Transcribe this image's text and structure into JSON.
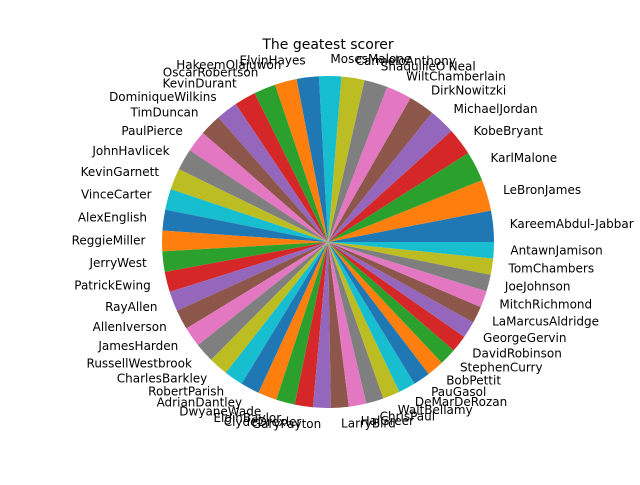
{
  "chart_data": {
    "type": "pie",
    "title": "The geatest scorer",
    "start_angle_deg": 0,
    "direction": "counterclockwise",
    "categories": [
      "KareemAbdul-Jabbar",
      "LeBronJames",
      "KarlMalone",
      "KobeBryant",
      "MichaelJordan",
      "DirkNowitzki",
      "WiltChamberlain",
      "ShaquilleO'Neal",
      "CarmeloAnthony",
      "MosesMalone",
      "ElvinHayes",
      "HakeemOlajuwon",
      "OscarRobertson",
      "KevinDurant",
      "DominiqueWilkins",
      "TimDuncan",
      "PaulPierce",
      "JohnHavlicek",
      "KevinGarnett",
      "VinceCarter",
      "AlexEnglish",
      "ReggieMiller",
      "JerryWest",
      "PatrickEwing",
      "RayAllen",
      "AllenIverson",
      "JamesHarden",
      "RussellWestbrook",
      "CharlesBarkley",
      "RobertParish",
      "AdrianDantley",
      "DwyaneWade",
      "ElginBaylor",
      "ClydeDrexler",
      "GaryPayton",
      "LarryBird",
      "HalGreer",
      "ChrisPaul",
      "WaltBellamy",
      "DeMarDeRozan",
      "PauGasol",
      "BobPettit",
      "StephenCurry",
      "DavidRobinson",
      "GeorgeGervin",
      "LaMarcusAldridge",
      "MitchRichmond",
      "JoeJohnson",
      "TomChambers",
      "AntawnJamison"
    ],
    "values": [
      38387,
      38390,
      36928,
      33643,
      32292,
      31560,
      31419,
      28596,
      28289,
      27409,
      27313,
      26946,
      26710,
      26511,
      26668,
      26496,
      26397,
      26395,
      26071,
      25728,
      25613,
      25279,
      25192,
      24815,
      24505,
      24368,
      24500,
      24000,
      23757,
      23334,
      23177,
      23165,
      23149,
      22195,
      21813,
      21791,
      21586,
      21500,
      20941,
      20900,
      20894,
      20880,
      20800,
      20790,
      20708,
      20558,
      20497,
      20407,
      20049,
      20042
    ],
    "colors": [
      "#1f77b4",
      "#ff7f0e",
      "#2ca02c",
      "#d62728",
      "#9467bd",
      "#8c564b",
      "#e377c2",
      "#7f7f7f",
      "#bcbd22",
      "#17becf"
    ],
    "legend": "none"
  }
}
